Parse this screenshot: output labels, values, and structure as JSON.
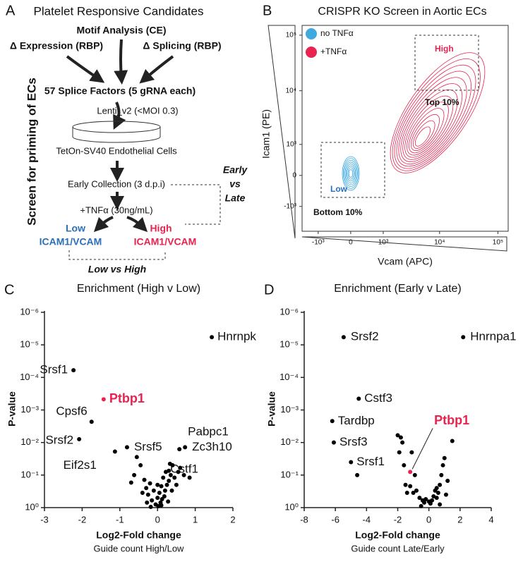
{
  "panel_a": {
    "letter": "A",
    "title": "Platelet Responsive Candidates",
    "side_label": "Screen for priming of ECs",
    "motif": "Motif Analysis (CE)",
    "expression": "Δ Expression (RBP)",
    "splicing": "Δ Splicing (RBP)",
    "factors": "57 Splice Factors (5 gRNA each)",
    "lenti": "Lenti_v2 (<MOI 0.3)",
    "cells": "TetOn-SV40 Endothelial Cells",
    "early": "Early Collection (3 d.p.i)",
    "tnf": "+TNFα (30ng/mL)",
    "low_1": "Low",
    "low_2": "ICAM1/VCAM",
    "high_1": "High",
    "high_2": "ICAM1/VCAM",
    "early_vs_late": [
      "Early",
      "vs",
      "Late"
    ],
    "low_vs_high": "Low vs High"
  },
  "chart_data": [
    {
      "type": "contour",
      "letter": "B",
      "title": "CRISPR KO Screen in Aortic ECs",
      "x_label": "Vcam (APC)",
      "y_label": "Icam1 (PE)",
      "scale": "biexponential",
      "xlim": [
        -2000,
        150000
      ],
      "ylim": [
        -3000,
        150000
      ],
      "xticks": [
        {
          "value": -1000,
          "label": "-10³"
        },
        0,
        {
          "value": 1000,
          "label": "10³"
        },
        {
          "value": 10000,
          "label": "10⁴"
        },
        {
          "value": 100000,
          "label": "10⁵"
        }
      ],
      "yticks": [
        {
          "value": -1000,
          "label": "-10³"
        },
        0,
        {
          "value": 1000,
          "label": "10³"
        },
        {
          "value": 10000,
          "label": "10⁴"
        },
        {
          "value": 100000,
          "label": "10⁵"
        }
      ],
      "series": [
        {
          "name": "no TNFα",
          "color": "#3fa9e0"
        },
        {
          "name": "+TNFα",
          "color": "#e8234f"
        }
      ],
      "gates": [
        {
          "label": "High",
          "note": "Top 10%",
          "color": "#e8234f"
        },
        {
          "label": "Low",
          "note": "Bottom 10%",
          "color": "#2a6fb8"
        }
      ]
    },
    {
      "type": "scatter",
      "letter": "C",
      "title": "Enrichment (High v Low)",
      "x_label": "Log2-Fold change",
      "x_sublabel": "Guide count High/Low",
      "y_label": "P-value",
      "log_scale": true,
      "xlim": [
        -3,
        2
      ],
      "xticks": [
        -3,
        -2,
        -1,
        0,
        1,
        2
      ],
      "ylim": [
        1,
        1e-06
      ],
      "yticks": [
        {
          "value": 1e-06,
          "label": "10⁻⁶"
        },
        {
          "value": 1e-05,
          "label": "10⁻⁵"
        },
        {
          "value": 0.0001,
          "label": "10⁻⁴"
        },
        {
          "value": 0.001,
          "label": "10⁻³"
        },
        {
          "value": 0.01,
          "label": "10⁻²"
        },
        {
          "value": 0.1,
          "label": "10⁻¹"
        },
        {
          "value": 1,
          "label": "10⁰"
        }
      ],
      "series": [
        {
          "color": "#000000",
          "x": [
            1.44,
            -2.23,
            -1.75,
            -2.08,
            -1.13,
            -0.81,
            0.58,
            0.73,
            0.3,
            -0.55,
            -0.45,
            -0.62,
            -0.35,
            -0.3,
            -0.25,
            -0.2,
            -0.15,
            -0.1,
            -0.05,
            0,
            0.02,
            0.05,
            0.08,
            0.1,
            0.12,
            0.15,
            0.18,
            0.2,
            0.22,
            0.25,
            0.28,
            0.3,
            0.35,
            0.38,
            0.4,
            0.45,
            0.5,
            0.55,
            0.6,
            0.7,
            0.85,
            -0.4,
            -0.28,
            -0.18,
            0,
            0.1,
            -0.7,
            0.33
          ],
          "values": [
            5.8e-06,
            6e-05,
            0.0023,
            0.0079,
            0.019,
            0.014,
            0.016,
            0.014,
            0.074,
            0.028,
            0.05,
            0.1,
            0.14,
            0.25,
            0.4,
            0.18,
            0.6,
            0.3,
            0.8,
            0.5,
            0.9,
            0.35,
            0.7,
            0.22,
            0.55,
            0.12,
            0.45,
            0.3,
            0.08,
            0.2,
            0.65,
            0.15,
            0.1,
            0.3,
            0.05,
            0.12,
            0.2,
            0.08,
            0.06,
            0.1,
            0.12,
            0.35,
            0.7,
            0.95,
            0.2,
            0.85,
            0.17,
            0.045
          ],
          "labels": [
            "Hnrnpk",
            "Srsf1",
            "Cpsf6",
            "Srsf2",
            "Eif2s1",
            "Srsf5",
            "Pabpc1",
            "Zc3h10",
            "Cstf1",
            null,
            null,
            null,
            null,
            null,
            null,
            null,
            null,
            null,
            null,
            null,
            null,
            null,
            null,
            null,
            null,
            null,
            null,
            null,
            null,
            null,
            null,
            null,
            null,
            null,
            null,
            null,
            null,
            null,
            null,
            null,
            null,
            null,
            null,
            null,
            null,
            null,
            null,
            null
          ]
        },
        {
          "color": "#e8234f",
          "x": [
            -1.43
          ],
          "values": [
            0.00047
          ],
          "labels": [
            "Ptbp1"
          ]
        }
      ]
    },
    {
      "type": "scatter",
      "letter": "D",
      "title": "Enrichment (Early v Late)",
      "x_label": "Log2-Fold change",
      "x_sublabel": "Guide count Late/Early",
      "y_label": "P-value",
      "log_scale": true,
      "xlim": [
        -8,
        4
      ],
      "xticks": [
        -8,
        -6,
        -4,
        -2,
        0,
        2,
        4
      ],
      "ylim": [
        1,
        1e-06
      ],
      "yticks": [
        {
          "value": 1e-06,
          "label": "10⁻⁶"
        },
        {
          "value": 1e-05,
          "label": "10⁻⁵"
        },
        {
          "value": 0.0001,
          "label": "10⁻⁴"
        },
        {
          "value": 0.001,
          "label": "10⁻³"
        },
        {
          "value": 0.01,
          "label": "10⁻²"
        },
        {
          "value": 0.1,
          "label": "10⁻¹"
        },
        {
          "value": 1,
          "label": "10⁰"
        }
      ],
      "series": [
        {
          "color": "#000000",
          "x": [
            -5.47,
            2.2,
            -4.5,
            -6.2,
            -6.1,
            -5.0,
            -2.0,
            -1.8,
            -1.7,
            -1.9,
            -1.6,
            -1.5,
            -1.4,
            -1.2,
            -1.0,
            -0.8,
            -0.6,
            -0.4,
            -0.3,
            -0.2,
            0,
            0.1,
            0.2,
            0.3,
            0.4,
            0.5,
            0.6,
            0.7,
            0.8,
            0.9,
            1.0,
            1.2,
            1.5,
            -4.6,
            -1.1,
            0.5,
            -0.5,
            0.7,
            1.1,
            -0.9
          ],
          "values": [
            5.8e-06,
            5.8e-06,
            0.00045,
            0.0022,
            0.01,
            0.04,
            0.006,
            0.007,
            0.01,
            0.02,
            0.05,
            0.2,
            0.35,
            0.22,
            0.35,
            0.3,
            0.5,
            0.6,
            0.7,
            0.55,
            0.65,
            0.75,
            0.6,
            0.45,
            0.3,
            0.25,
            0.35,
            0.2,
            0.1,
            0.05,
            0.03,
            0.15,
            0.009,
            0.1,
            0.02,
            0.5,
            0.9,
            0.8,
            0.4,
            0.1
          ],
          "labels": [
            "Srsf2",
            "Hnrnpa1",
            "Cstf3",
            "Tardbp",
            "Srsf3",
            "Srsf1",
            null,
            null,
            null,
            null,
            null,
            null,
            null,
            null,
            null,
            null,
            null,
            null,
            null,
            null,
            null,
            null,
            null,
            null,
            null,
            null,
            null,
            null,
            null,
            null,
            null,
            null,
            null,
            null,
            null,
            null,
            null,
            null,
            null,
            null
          ]
        },
        {
          "color": "#e8234f",
          "x": [
            -1.2
          ],
          "values": [
            0.08
          ],
          "labels": [
            "Ptbp1"
          ]
        }
      ]
    }
  ]
}
